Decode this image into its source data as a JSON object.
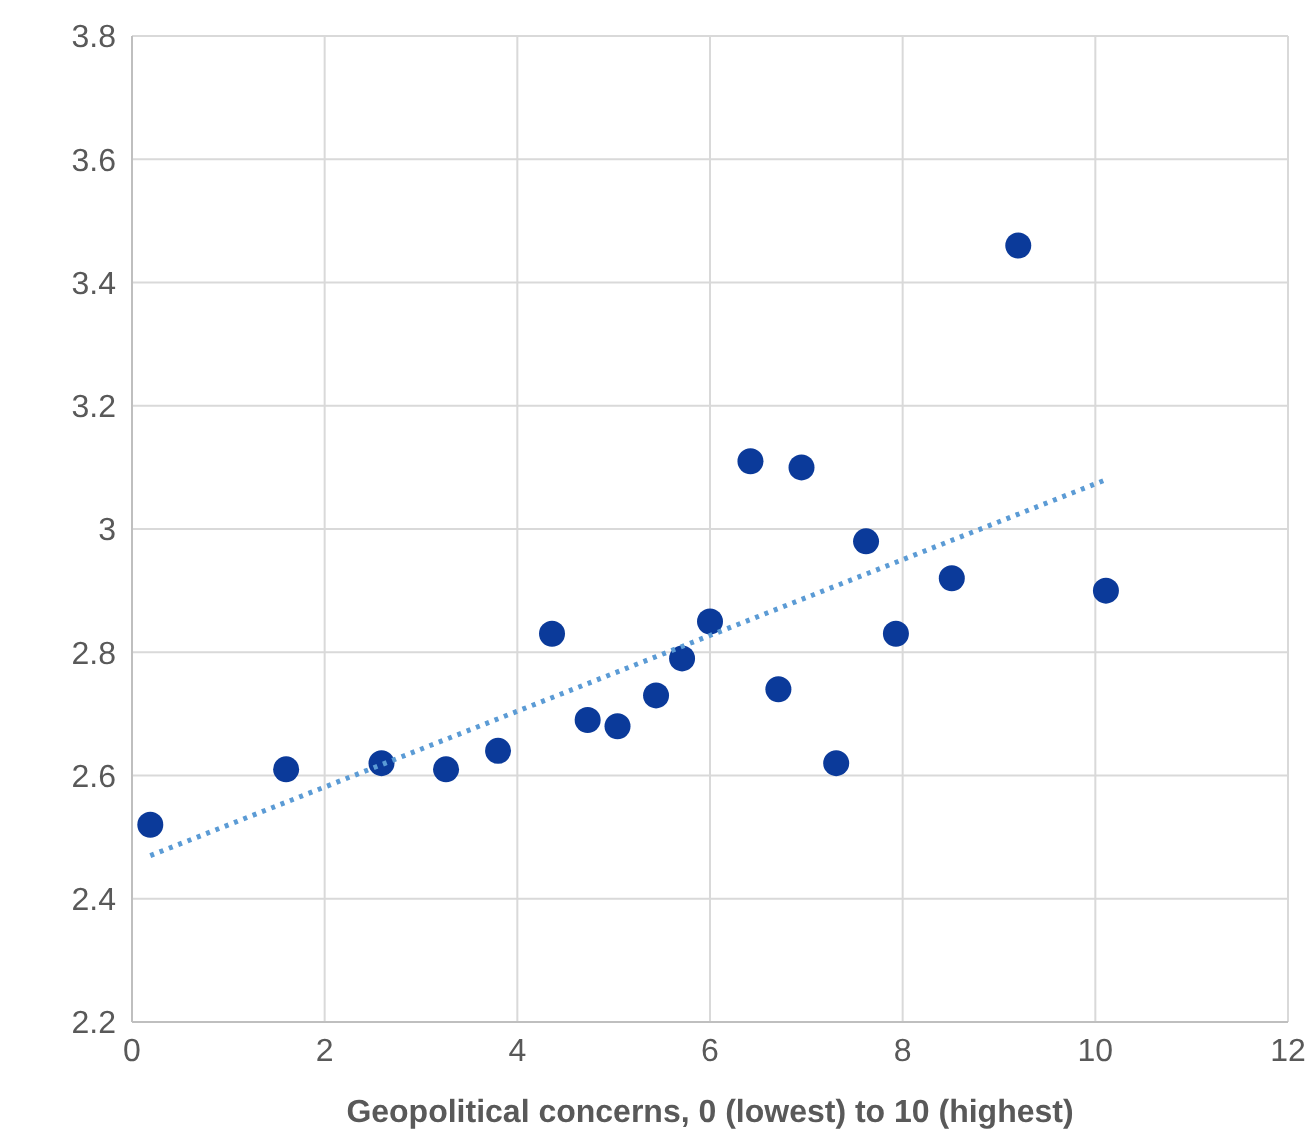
{
  "chart_data": {
    "type": "scatter",
    "xlabel": "Geopolitical concerns, 0 (lowest) to 10 (highest)",
    "xlim": [
      0,
      12
    ],
    "xticks": [
      0,
      2,
      4,
      6,
      8,
      10,
      12
    ],
    "ylim": [
      2.2,
      3.8
    ],
    "yticks": [
      2.2,
      2.4,
      2.6,
      2.8,
      3,
      3.2,
      3.4,
      3.6,
      3.8
    ],
    "grid": true,
    "series": [
      {
        "color": "#0b3a9a",
        "marker": "circle",
        "x": [
          0.19,
          1.6,
          2.59,
          3.26,
          3.8,
          4.36,
          4.73,
          5.04,
          5.44,
          5.71,
          6.0,
          6.42,
          6.71,
          6.95,
          7.31,
          7.62,
          7.93,
          8.51,
          9.2,
          10.11
        ],
        "values": [
          2.52,
          2.61,
          2.62,
          2.61,
          2.64,
          2.83,
          2.69,
          2.68,
          2.73,
          2.79,
          2.85,
          3.11,
          2.74,
          3.1,
          2.62,
          2.98,
          2.83,
          2.92,
          3.46,
          2.9
        ]
      },
      {
        "type": "line",
        "color": "#5b9bd5",
        "marker": "none",
        "line_style": "dotted",
        "x": [
          0.19,
          10.11
        ],
        "values": [
          2.47,
          3.08
        ]
      }
    ]
  }
}
